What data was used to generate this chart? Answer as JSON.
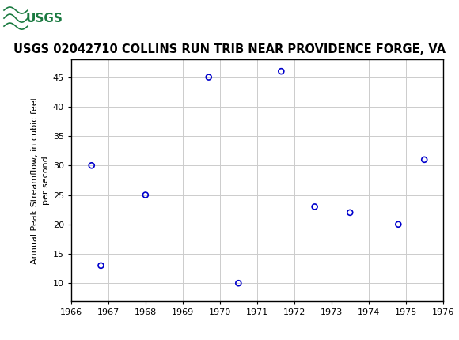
{
  "title": "USGS 02042710 COLLINS RUN TRIB NEAR PROVIDENCE FORGE, VA",
  "ylabel_line1": "Annual Peak Streamflow, in cubic feet",
  "ylabel_line2": "per second",
  "x_data": [
    1966.55,
    1966.8,
    1968.0,
    1969.7,
    1970.5,
    1971.65,
    1972.55,
    1973.5,
    1974.8,
    1975.5
  ],
  "y_data": [
    30,
    13,
    25,
    45,
    10,
    46,
    23,
    22,
    20,
    31
  ],
  "xlim": [
    1966,
    1976
  ],
  "ylim": [
    7,
    48
  ],
  "xticks": [
    1966,
    1967,
    1968,
    1969,
    1970,
    1971,
    1972,
    1973,
    1974,
    1975,
    1976
  ],
  "yticks": [
    10,
    15,
    20,
    25,
    30,
    35,
    40,
    45
  ],
  "marker_color": "#0000CC",
  "marker_size": 5,
  "marker_linewidth": 1.2,
  "header_bg_color": "#1a7a40",
  "title_fontsize": 10.5,
  "ylabel_fontsize": 8,
  "tick_fontsize": 8,
  "grid_color": "#cccccc",
  "plot_bg_color": "#ffffff",
  "fig_bg_color": "#ffffff",
  "border_color": "#000000"
}
